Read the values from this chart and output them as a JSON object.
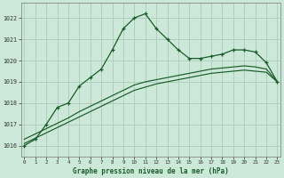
{
  "title": "Graphe pression niveau de la mer (hPa)",
  "xlabel_hours": [
    0,
    1,
    2,
    3,
    4,
    5,
    6,
    7,
    8,
    9,
    10,
    11,
    12,
    13,
    14,
    15,
    16,
    17,
    18,
    19,
    20,
    21,
    22,
    23
  ],
  "main_line": [
    1016.0,
    1016.3,
    1017.0,
    1017.8,
    1018.0,
    1018.8,
    1019.2,
    1019.6,
    1020.5,
    1021.5,
    1022.0,
    1022.2,
    1021.5,
    1021.0,
    1020.5,
    1020.1,
    1020.1,
    1020.2,
    1020.3,
    1020.5,
    1020.5,
    1020.4,
    1019.9,
    1019.0
  ],
  "smooth_line1": [
    1016.1,
    1016.35,
    1016.6,
    1016.85,
    1017.1,
    1017.35,
    1017.6,
    1017.85,
    1018.1,
    1018.35,
    1018.6,
    1018.75,
    1018.9,
    1019.0,
    1019.1,
    1019.2,
    1019.3,
    1019.4,
    1019.45,
    1019.5,
    1019.55,
    1019.5,
    1019.45,
    1019.0
  ],
  "smooth_line2": [
    1016.3,
    1016.55,
    1016.8,
    1017.05,
    1017.3,
    1017.6,
    1017.85,
    1018.1,
    1018.35,
    1018.6,
    1018.85,
    1019.0,
    1019.1,
    1019.2,
    1019.3,
    1019.4,
    1019.5,
    1019.6,
    1019.65,
    1019.7,
    1019.75,
    1019.7,
    1019.6,
    1019.0
  ],
  "bg_color": "#cce8d8",
  "grid_color": "#aaccbb",
  "line_color": "#1a5c28",
  "ylim": [
    1015.5,
    1022.7
  ],
  "yticks": [
    1016,
    1017,
    1018,
    1019,
    1020,
    1021,
    1022
  ],
  "figwidth": 3.2,
  "figheight": 2.0,
  "dpi": 100
}
